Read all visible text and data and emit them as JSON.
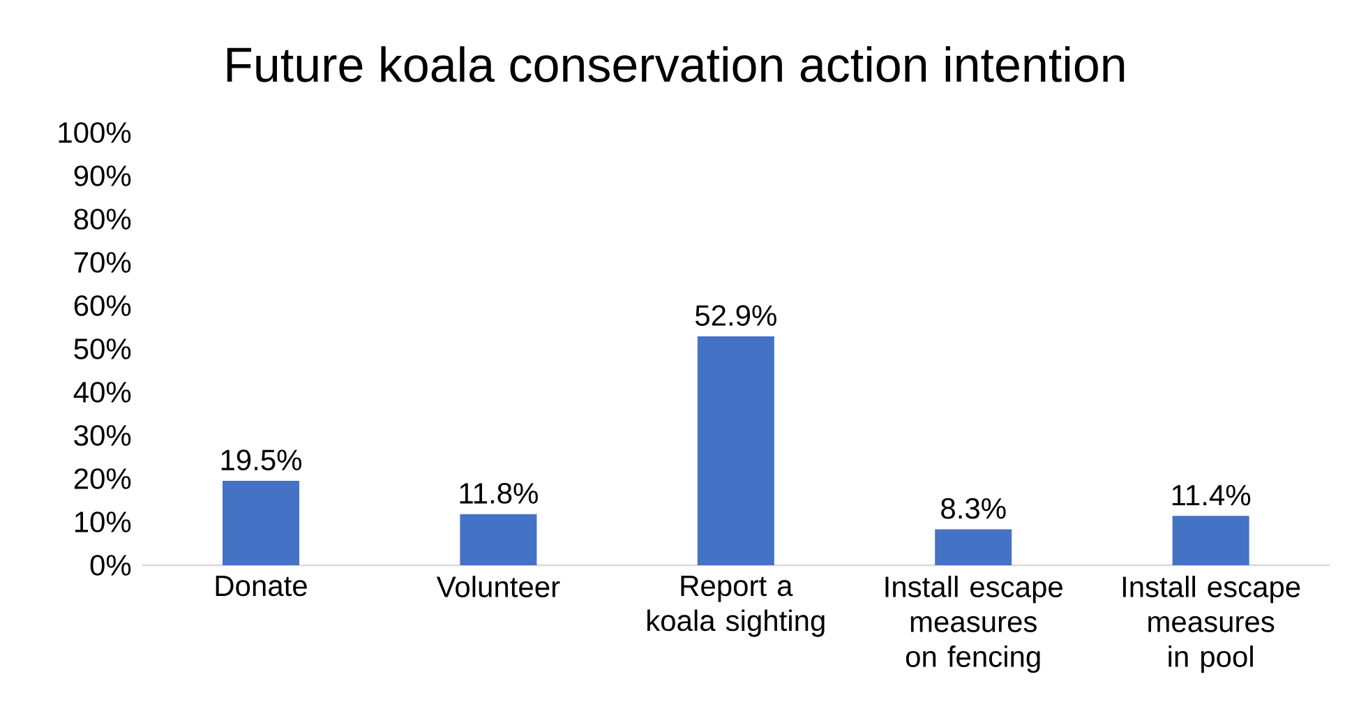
{
  "chart_data": {
    "type": "bar",
    "title": "Future koala conservation action intention",
    "categories": [
      "Donate",
      "Volunteer",
      "Report a koala sighting",
      "Install escape measures on fencing",
      "Install escape measures in pool"
    ],
    "values": [
      19.5,
      11.8,
      52.9,
      8.3,
      11.4
    ],
    "value_labels": [
      "19.5%",
      "11.8%",
      "52.9%",
      "8.3%",
      "11.4%"
    ],
    "color": "#4472c4",
    "ylim": [
      0,
      100
    ],
    "yticks": [
      {
        "value": 0,
        "label": "0%"
      },
      {
        "value": 10,
        "label": "10%"
      },
      {
        "value": 20,
        "label": "20%"
      },
      {
        "value": 30,
        "label": "30%"
      },
      {
        "value": 40,
        "label": "40%"
      },
      {
        "value": 50,
        "label": "50%"
      },
      {
        "value": 60,
        "label": "60%"
      },
      {
        "value": 70,
        "label": "70%"
      },
      {
        "value": 80,
        "label": "80%"
      },
      {
        "value": 90,
        "label": "90%"
      },
      {
        "value": 100,
        "label": "100%"
      }
    ]
  }
}
